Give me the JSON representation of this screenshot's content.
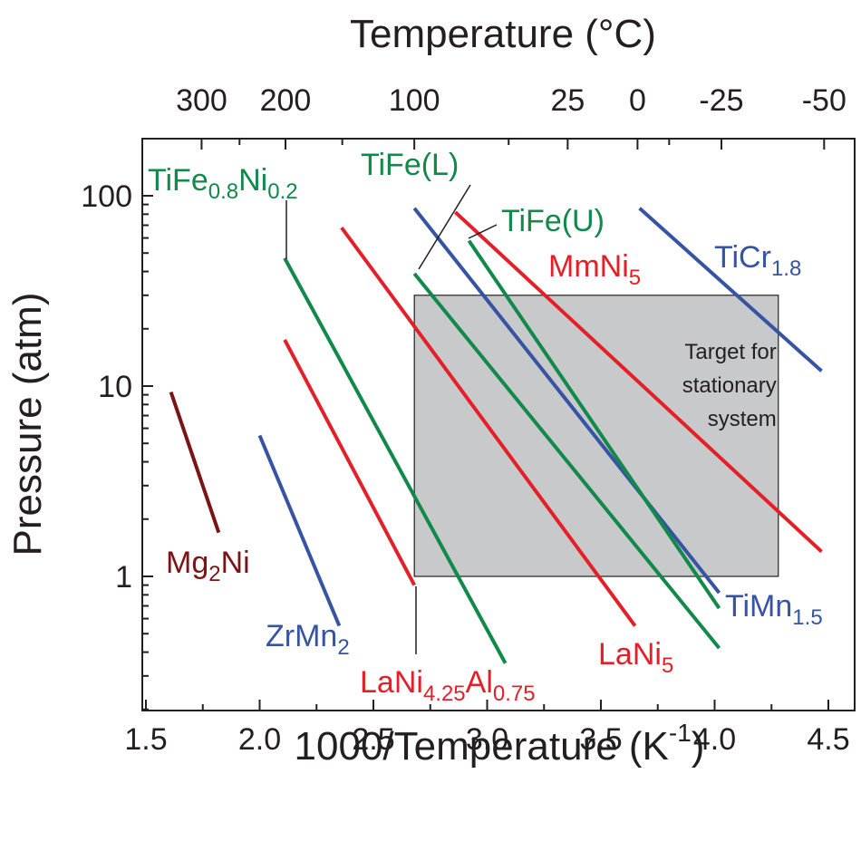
{
  "chart_data": {
    "type": "line",
    "title": "",
    "xlabel": "1000/Temperature (K",
    "xlabel_sup": "-1",
    "xlabel_close": ")",
    "ylabel": "Pressure (atm)",
    "top_xlabel": "Temperature (°C)",
    "xlim": [
      1.5,
      4.6
    ],
    "ylim": [
      0.2,
      200
    ],
    "yscale": "log",
    "x_ticks": [
      1.5,
      2.0,
      2.5,
      3.0,
      3.5,
      4.0,
      4.5
    ],
    "x_tick_labels": [
      "1.5",
      "2.0",
      "2.5",
      "3.0",
      "3.5",
      "4.0",
      "4.5"
    ],
    "y_ticks": [
      1,
      10,
      100
    ],
    "y_tick_labels": [
      "1",
      "10",
      "100"
    ],
    "top_ticks_celsius": [
      300,
      200,
      100,
      25,
      0,
      -25,
      -50
    ],
    "top_tick_labels": [
      "300",
      "200",
      "100",
      "25",
      "0",
      "-25",
      "-50"
    ],
    "target_region": {
      "x": [
        2.68,
        4.28
      ],
      "y": [
        1,
        30
      ],
      "text_lines": [
        "Target for",
        "stationary",
        "system"
      ],
      "color": "#c8c9cb"
    },
    "series": [
      {
        "name": "Mg2Ni",
        "color": "#7a1416",
        "label": [
          "Mg",
          "2",
          "Ni",
          ""
        ],
        "x": [
          1.61,
          1.82
        ],
        "y": [
          9.3,
          1.7
        ]
      },
      {
        "name": "ZrMn2",
        "color": "#3653a4",
        "label": [
          "ZrMn",
          "2",
          "",
          ""
        ],
        "x": [
          2.0,
          2.35
        ],
        "y": [
          5.5,
          0.55
        ]
      },
      {
        "name": "LaNi4.25Al0.75",
        "color": "#e32028",
        "label": [
          "LaNi",
          "4.25",
          "Al",
          "0.75"
        ],
        "x": [
          2.11,
          2.68
        ],
        "y": [
          17.5,
          0.9
        ]
      },
      {
        "name": "TiFe0.8Ni0.2",
        "color": "#10894a",
        "label": [
          "TiFe",
          "0.8",
          "Ni",
          "0.2"
        ],
        "x": [
          2.11,
          3.08
        ],
        "y": [
          47,
          0.35
        ]
      },
      {
        "name": "LaNi5",
        "color": "#e32028",
        "label": [
          "LaNi",
          "5",
          "",
          ""
        ],
        "x": [
          2.36,
          3.65
        ],
        "y": [
          68,
          0.55
        ]
      },
      {
        "name": "TiFe(L)",
        "color": "#10894a",
        "label": [
          "TiFe(L)",
          "",
          "",
          ""
        ],
        "x": [
          2.68,
          4.02
        ],
        "y": [
          39,
          0.42
        ]
      },
      {
        "name": "TiMn1.5",
        "color": "#3653a4",
        "label": [
          "TiMn",
          "1.5",
          "",
          ""
        ],
        "x": [
          2.68,
          4.02
        ],
        "y": [
          86,
          0.82
        ]
      },
      {
        "name": "TiFe(U)",
        "color": "#10894a",
        "label": [
          "TiFe(U)",
          "",
          "",
          ""
        ],
        "x": [
          2.92,
          4.02
        ],
        "y": [
          58,
          0.68
        ]
      },
      {
        "name": "MmNi5",
        "color": "#e32028",
        "label": [
          "MmNi",
          "5",
          "",
          ""
        ],
        "x": [
          2.86,
          4.47
        ],
        "y": [
          82,
          1.35
        ]
      },
      {
        "name": "TiCr1.8",
        "color": "#3653a4",
        "label": [
          "TiCr",
          "1.8",
          "",
          ""
        ],
        "x": [
          3.67,
          4.47
        ],
        "y": [
          86,
          12
        ]
      }
    ]
  }
}
